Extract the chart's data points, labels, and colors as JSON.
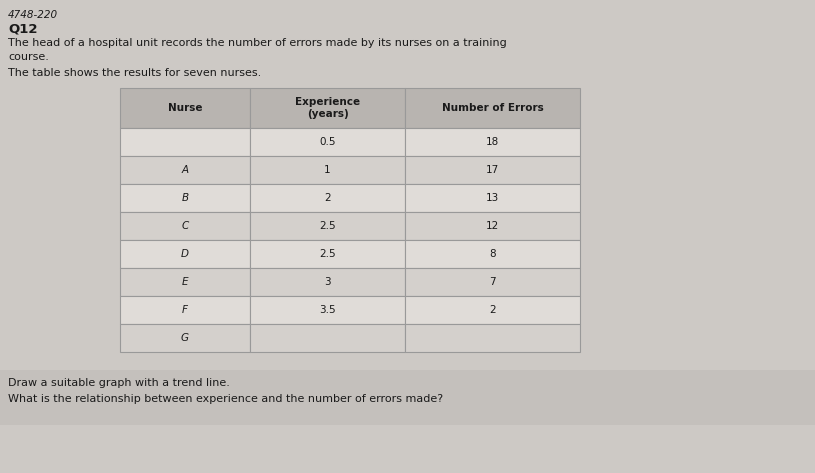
{
  "title_line1": "4748-220",
  "title_line2": "Q12",
  "desc_line1": "The head of a hospital unit records the number of errors made by its nurses on a training",
  "desc_line2": "course.",
  "table_intro": "The table shows the results for seven nurses.",
  "col_headers": [
    "Nurse",
    "Experience\n(years)",
    "Number of Errors"
  ],
  "nurses": [
    "",
    "A",
    "B",
    "C",
    "D",
    "E",
    "F",
    "G"
  ],
  "experience": [
    "0.5",
    "1",
    "2",
    "2.5",
    "2.5",
    "3",
    "3.5",
    ""
  ],
  "errors": [
    "18",
    "17",
    "13",
    "12",
    "8",
    "7",
    "2",
    ""
  ],
  "footer_line1": "Draw a suitable graph with a trend line.",
  "footer_line2": "What is the relationship between experience and the number of errors made?",
  "bg_color": "#cdc9c5",
  "table_header_color": "#b8b4b0",
  "table_row_color_light": "#e0dcd8",
  "table_row_color_mid": "#d4d0cc",
  "footer_bg": "#c4c0bc",
  "text_color": "#1a1a1a",
  "border_color": "#999999"
}
